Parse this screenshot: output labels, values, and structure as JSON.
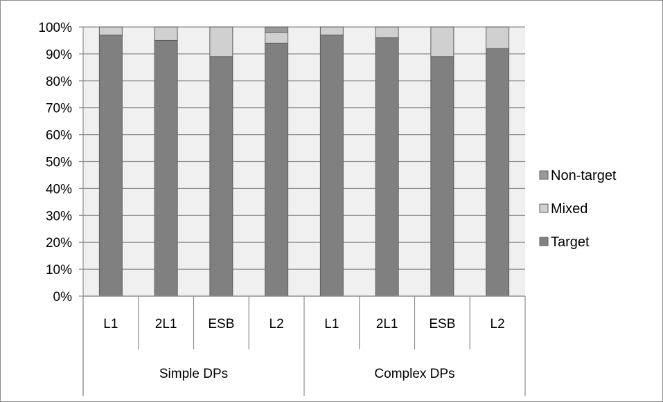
{
  "chart_data": {
    "type": "bar",
    "stacked": true,
    "percent": true,
    "groups": [
      {
        "label": "Simple DPs",
        "categories": [
          "L1",
          "2L1",
          "ESB",
          "L2"
        ]
      },
      {
        "label": "Complex DPs",
        "categories": [
          "L1",
          "2L1",
          "ESB",
          "L2"
        ]
      }
    ],
    "categories": [
      "L1",
      "2L1",
      "ESB",
      "L2",
      "L1",
      "2L1",
      "ESB",
      "L2"
    ],
    "series": [
      {
        "name": "Target",
        "color": "#808080",
        "values": [
          97,
          95,
          89,
          94,
          97,
          96,
          89,
          92
        ]
      },
      {
        "name": "Mixed",
        "color": "#d0d0d0",
        "values": [
          3,
          5,
          11,
          4,
          3,
          4,
          11,
          8
        ]
      },
      {
        "name": "Non-target",
        "color": "#9a9a9a",
        "values": [
          0,
          0,
          0,
          2,
          0,
          0,
          0,
          0
        ]
      }
    ],
    "legend_order": [
      "Non-target",
      "Mixed",
      "Target"
    ],
    "ylim": [
      0,
      100
    ],
    "yticks": [
      "0%",
      "10%",
      "20%",
      "30%",
      "40%",
      "50%",
      "60%",
      "70%",
      "80%",
      "90%",
      "100%"
    ],
    "xlabel": "",
    "ylabel": "",
    "title": "",
    "grid": true,
    "legend_position": "right",
    "plot_background": "#f0f0f0"
  }
}
